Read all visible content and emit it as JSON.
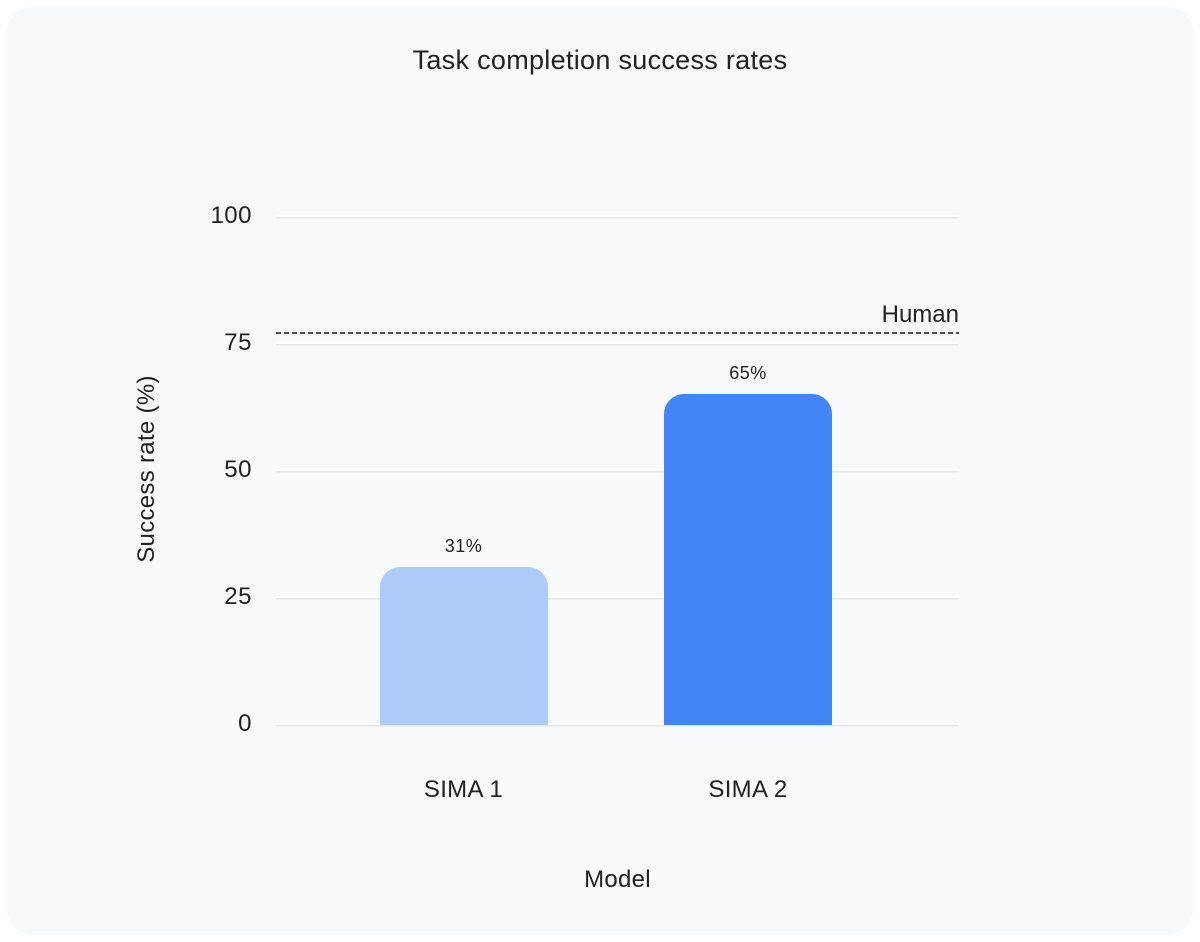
{
  "page": {
    "background_color": "#ffffff",
    "card_background_color": "#f8f9fa"
  },
  "chart_data": {
    "type": "bar",
    "title": "Task completion success rates",
    "xlabel": "Model",
    "ylabel": "Success rate (%)",
    "categories": [
      "SIMA 1",
      "SIMA 2"
    ],
    "values": [
      31,
      65
    ],
    "value_labels": [
      "31%",
      "65%"
    ],
    "bar_colors": [
      "#aecbfa",
      "#4285f4"
    ],
    "yticks": [
      "0",
      "25",
      "50",
      "75",
      "100"
    ],
    "ytick_values": [
      0,
      25,
      50,
      75,
      100
    ],
    "ylim": [
      0,
      100
    ],
    "grid": "horizontal gridlines on",
    "legend": "none",
    "text_color": "#202124",
    "gridline_color": "#ffffff",
    "gridline_shadow_color": "#e4e6ea",
    "reference_line": {
      "label": "Human",
      "value": 77,
      "style": "dashed",
      "color": "#4d5156"
    }
  }
}
